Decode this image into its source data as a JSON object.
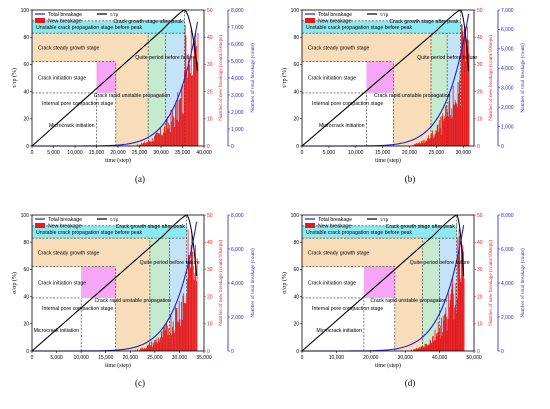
{
  "colors": {
    "stress_line": "#000000",
    "total_breakage": "#1f1fd6",
    "new_breakage": "#e41a1c",
    "axis_new": "#e41a1c",
    "axis_total": "#1f1fd6",
    "stage_cyan": "#7fe6f0",
    "stage_orange": "#f7d9b3",
    "stage_magenta": "#f59cf5",
    "stage_green": "#bfe8c9",
    "stage_blue": "#bfe0f5"
  },
  "stages": {
    "pore": "Internal pore compaction stage",
    "micro": "Microcrack initiation",
    "initiation": "Crack initiation stage",
    "steady": "Crack steady growth stage",
    "rapid": "Crack rapid unstable propagation",
    "quiet": "Quite period before failure",
    "unstable": "Unstable crack propagation stage before peak",
    "after": "Crack growth stage after peak"
  },
  "chart_data": [
    {
      "type": "line",
      "panel_label": "(a)",
      "xlabel": "time (step)",
      "ylabel_left": "τ/τp (%)",
      "ylabel_right1": "Number of new breakage (count/10steps)",
      "ylabel_right2": "Number of total breakage (count)",
      "legend": {
        "total": "Total breakage",
        "new": "New breakage",
        "ratio": "τ/τp"
      },
      "xlim": [
        0,
        40000
      ],
      "x_ticks": [
        "0",
        "5,000",
        "10,000",
        "15,000",
        "20,000",
        "25,000",
        "30,000",
        "35,000",
        "40,000"
      ],
      "ylim_left": [
        0,
        100
      ],
      "y_ticks_left": [
        "0",
        "20",
        "40",
        "60",
        "80",
        "100"
      ],
      "ylim_right1": [
        0,
        50
      ],
      "y_ticks_right1": [
        "0",
        "10",
        "20",
        "30",
        "40",
        "50"
      ],
      "ylim_right2": [
        0,
        8000
      ],
      "y_ticks_right2": [
        "0",
        "1,000",
        "2,000",
        "3,000",
        "4,000",
        "5,000",
        "6,000",
        "7,000",
        "8,000"
      ],
      "stage_bounds_x": [
        15000,
        19500,
        27000,
        31000,
        35500
      ],
      "stage_bounds_y": [
        39,
        62,
        83,
        92
      ],
      "peak_x": 35500,
      "end_x": 38500,
      "total_end": 7300
    },
    {
      "type": "line",
      "panel_label": "(b)",
      "xlabel": "time (step)",
      "ylabel_left": "τ/τp (%)",
      "ylabel_right1": "Number of new breakage (count/10steps)",
      "ylabel_right2": "Number of total breakage (count)",
      "legend": {
        "total": "Total breakage",
        "new": "New breakage",
        "ratio": "τ/τp"
      },
      "xlim": [
        0,
        32000
      ],
      "x_ticks": [
        "0",
        "5,000",
        "10,000",
        "15,000",
        "20,000",
        "25,000",
        "30,000"
      ],
      "ylim_left": [
        0,
        100
      ],
      "y_ticks_left": [
        "0",
        "20",
        "40",
        "60",
        "80",
        "100"
      ],
      "ylim_right1": [
        0,
        50
      ],
      "y_ticks_right1": [
        "0",
        "10",
        "20",
        "30",
        "40",
        "50"
      ],
      "ylim_right2": [
        0,
        7000
      ],
      "y_ticks_right2": [
        "0",
        "1,000",
        "2,000",
        "3,000",
        "4,000",
        "5,000",
        "6,000",
        "7,000"
      ],
      "stage_bounds_x": [
        12000,
        17000,
        24000,
        27000,
        29500
      ],
      "stage_bounds_y": [
        39,
        62,
        83,
        92
      ],
      "peak_x": 29500,
      "end_x": 31000,
      "total_end": 6800
    },
    {
      "type": "line",
      "panel_label": "(c)",
      "xlabel": "time (step)",
      "ylabel_left": "σ/σp (%)",
      "ylabel_right1": "Number of new breakage (count/10steps)",
      "ylabel_right2": "Number of total breakage (count)",
      "legend": {
        "total": "Total breakage",
        "new": "New breakage",
        "ratio": "τ/τp"
      },
      "xlim": [
        0,
        35000
      ],
      "x_ticks": [
        "0",
        "5,000",
        "10,000",
        "15,000",
        "20,000",
        "25,000",
        "30,000",
        "35,000"
      ],
      "ylim_left": [
        0,
        100
      ],
      "y_ticks_left": [
        "0",
        "20",
        "40",
        "60",
        "80",
        "100"
      ],
      "ylim_right1": [
        0,
        50
      ],
      "y_ticks_right1": [
        "0",
        "10",
        "20",
        "30",
        "40",
        "50"
      ],
      "ylim_right2": [
        0,
        8000
      ],
      "y_ticks_right2": [
        "0",
        "2,000",
        "4,000",
        "6,000",
        "8,000"
      ],
      "stage_bounds_x": [
        10000,
        17000,
        24000,
        28000,
        31500
      ],
      "stage_bounds_y": [
        39,
        62,
        83,
        92
      ],
      "peak_x": 31500,
      "end_x": 33500,
      "total_end": 7600
    },
    {
      "type": "line",
      "panel_label": "(d)",
      "xlabel": "time (step)",
      "ylabel_left": "σ/σp (%)",
      "ylabel_right1": "Number of new breakage (count/10steps)",
      "ylabel_right2": "Number of total breakage (count)",
      "legend": {
        "total": "Total breakage",
        "new": "New breakage",
        "ratio": "τ/τp"
      },
      "xlim": [
        0,
        50000
      ],
      "x_ticks": [
        "0",
        "10,000",
        "20,000",
        "30,000",
        "40,000",
        "50,000"
      ],
      "ylim_left": [
        0,
        100
      ],
      "y_ticks_left": [
        "0",
        "20",
        "40",
        "60",
        "80",
        "100"
      ],
      "ylim_right1": [
        0,
        50
      ],
      "y_ticks_right1": [
        "0",
        "10",
        "20",
        "30",
        "40",
        "50"
      ],
      "ylim_right2": [
        0,
        8000
      ],
      "y_ticks_right2": [
        "0",
        "2,000",
        "4,000",
        "6,000",
        "8,000"
      ],
      "stage_bounds_x": [
        18000,
        27000,
        35000,
        40000,
        45000
      ],
      "stage_bounds_y": [
        39,
        62,
        83,
        92
      ],
      "peak_x": 45000,
      "end_x": 47000,
      "total_end": 7400
    }
  ]
}
